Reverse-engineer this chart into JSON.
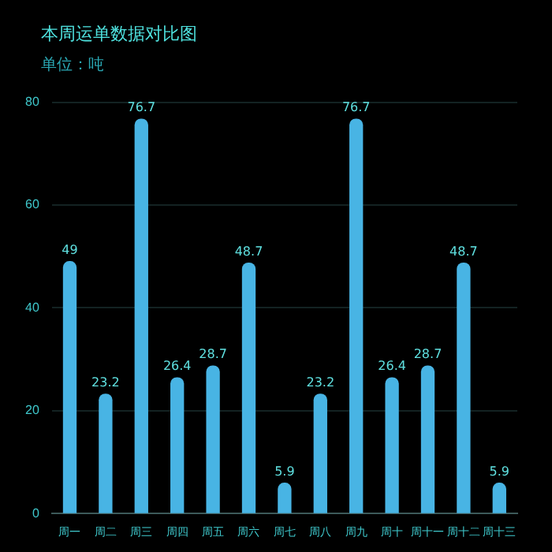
{
  "chart_data": {
    "type": "bar",
    "title": "本周运单数据对比图",
    "subtitle": "单位：吨",
    "categories": [
      "周一",
      "周二",
      "周三",
      "周四",
      "周五",
      "周六",
      "周七",
      "周八",
      "周九",
      "周十",
      "周十一",
      "周十二",
      "周十三"
    ],
    "values": [
      49,
      23.2,
      76.7,
      26.4,
      28.7,
      48.7,
      5.9,
      23.2,
      76.7,
      26.4,
      28.7,
      48.7,
      5.9
    ],
    "color": "#48b4e4",
    "ylim": [
      0,
      80
    ],
    "yticks": [
      0,
      20,
      40,
      60,
      80
    ],
    "grid": "y",
    "legend": false,
    "data_labels": true
  }
}
